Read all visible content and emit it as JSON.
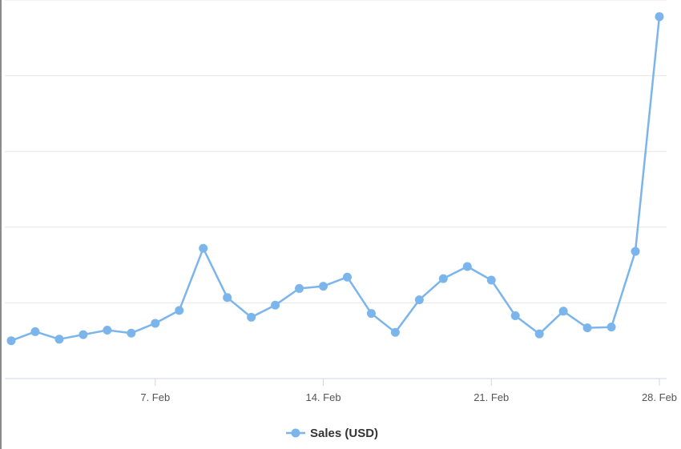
{
  "chart_data": {
    "type": "line",
    "x": [
      "1. Feb",
      "2. Feb",
      "3. Feb",
      "4. Feb",
      "5. Feb",
      "6. Feb",
      "7. Feb",
      "8. Feb",
      "9. Feb",
      "10. Feb",
      "11. Feb",
      "12. Feb",
      "13. Feb",
      "14. Feb",
      "15. Feb",
      "16. Feb",
      "17. Feb",
      "18. Feb",
      "19. Feb",
      "20. Feb",
      "21. Feb",
      "22. Feb",
      "23. Feb",
      "24. Feb",
      "25. Feb",
      "26. Feb",
      "27. Feb",
      "28. Feb"
    ],
    "x_ticks": [
      "7. Feb",
      "14. Feb",
      "21. Feb",
      "28. Feb"
    ],
    "series": [
      {
        "name": "Sales (USD)",
        "color": "#7cb5ec",
        "values": [
          50,
          62,
          52,
          58,
          64,
          60,
          73,
          90,
          172,
          107,
          81,
          97,
          119,
          122,
          134,
          86,
          61,
          104,
          132,
          148,
          130,
          83,
          59,
          89,
          67,
          68,
          168,
          478
        ]
      }
    ],
    "ylim": [
      0,
      500
    ],
    "y_gridlines": [
      100,
      200,
      300,
      400,
      500
    ],
    "grid": true,
    "legend": "bottom-center",
    "title": "",
    "xlabel": "",
    "ylabel": ""
  }
}
